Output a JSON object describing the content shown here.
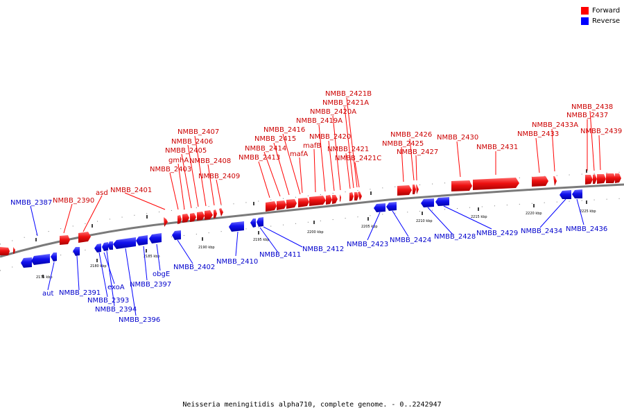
{
  "legend": {
    "forward": {
      "label": "Forward",
      "color": "#ff0000"
    },
    "reverse": {
      "label": "Reverse",
      "color": "#0000ff"
    }
  },
  "caption": "Neisseria meningitidis alpha710, complete genome. - 0..2242947",
  "scale_labels": [
    "2175 kbp",
    "2180 kbp",
    "2185 kbp",
    "2190 kbp",
    "2195 kbp",
    "2200 kbp",
    "2205 kbp",
    "2210 kbp",
    "2215 kbp",
    "2220 kbp",
    "2225 kbp"
  ],
  "forward_genes": [
    "NMBB_2390",
    "asd",
    "NMBB_2401",
    "NMBB_2403",
    "gmhA",
    "NMBB_2405",
    "NMBB_2406",
    "NMBB_2407",
    "NMBB_2408",
    "NMBB_2409",
    "NMBB_2413",
    "NMBB_2414",
    "NMBB_2415",
    "NMBB_2416",
    "mafA",
    "mafB",
    "NMBB_2419A",
    "NMBB_2420",
    "NMBB_2420A",
    "NMBB_2421",
    "NMBB_2421A",
    "NMBB_2421B",
    "NMBB_2421C",
    "NMBB_2425",
    "NMBB_2426",
    "NMBB_2427",
    "NMBB_2430",
    "NMBB_2431",
    "NMBB_2433",
    "NMBB_2433A",
    "NMBB_2437",
    "NMBB_2438",
    "NMBB_2439"
  ],
  "reverse_genes": [
    "NMBB_2387",
    "aut",
    "NMBB_2391",
    "exoA",
    "NMBB_2393",
    "NMBB_2394",
    "NMBB_2396",
    "NMBB_2397",
    "obgE",
    "NMBB_2402",
    "NMBB_2410",
    "NMBB_2411",
    "NMBB_2412",
    "NMBB_2423",
    "NMBB_2424",
    "NMBB_2428",
    "NMBB_2429",
    "NMBB_2434",
    "NMBB_2436"
  ]
}
